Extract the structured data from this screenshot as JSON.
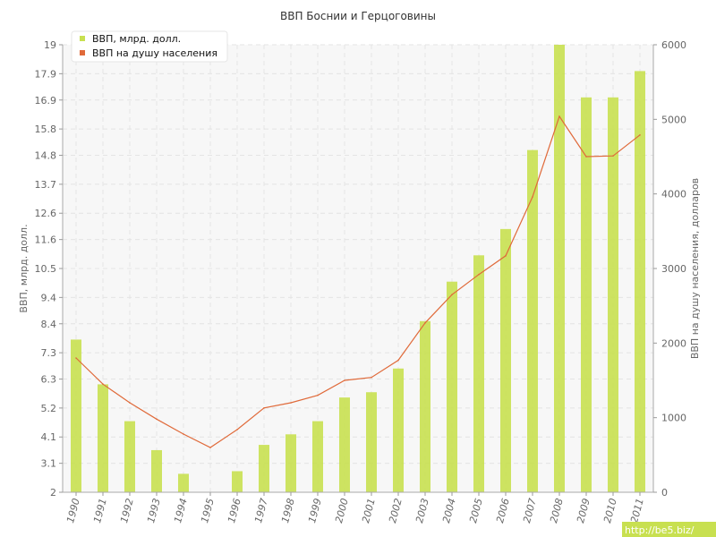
{
  "chart_data": {
    "type": "bar+line",
    "title": "ВВП Боснии и Герцоговины",
    "categories": [
      "1990",
      "1991",
      "1992",
      "1993",
      "1994",
      "1995",
      "1996",
      "1997",
      "1998",
      "1999",
      "2000",
      "2001",
      "2002",
      "2003",
      "2004",
      "2005",
      "2006",
      "2007",
      "2008",
      "2009",
      "2010",
      "2011"
    ],
    "series": [
      {
        "name": "ВВП, млрд. долл.",
        "type": "bar",
        "axis": "left",
        "color": "#c8e050",
        "values": [
          7.8,
          6.1,
          4.7,
          3.6,
          2.7,
          2.0,
          2.8,
          3.8,
          4.2,
          4.7,
          5.6,
          5.8,
          6.7,
          8.5,
          10.0,
          11.0,
          12.0,
          15.0,
          19.0,
          17.0,
          17.0,
          18.0
        ]
      },
      {
        "name": "ВВП на душу населения",
        "type": "line",
        "axis": "right",
        "color": "#e06a3a",
        "values": [
          1800,
          1450,
          1200,
          980,
          780,
          600,
          840,
          1130,
          1200,
          1300,
          1500,
          1540,
          1770,
          2270,
          2650,
          2920,
          3170,
          3960,
          5040,
          4500,
          4510,
          4790
        ]
      }
    ],
    "y_left": {
      "label": "ВВП, млрд. долл.",
      "ylim": [
        2,
        19
      ],
      "ticks": [
        "2",
        "3.1",
        "4.1",
        "5.2",
        "6.3",
        "7.3",
        "8.4",
        "9.4",
        "10.5",
        "11.6",
        "12.6",
        "13.7",
        "14.8",
        "15.8",
        "16.9",
        "17.9",
        "19"
      ]
    },
    "y_right": {
      "label": "ВВП на душу населения, долларов",
      "ylim": [
        0,
        6000
      ],
      "ticks": [
        "0",
        "1000",
        "2000",
        "3000",
        "4000",
        "5000",
        "6000"
      ]
    },
    "grid": true,
    "legend_position": "top-left"
  },
  "watermark": "http://be5.biz/"
}
